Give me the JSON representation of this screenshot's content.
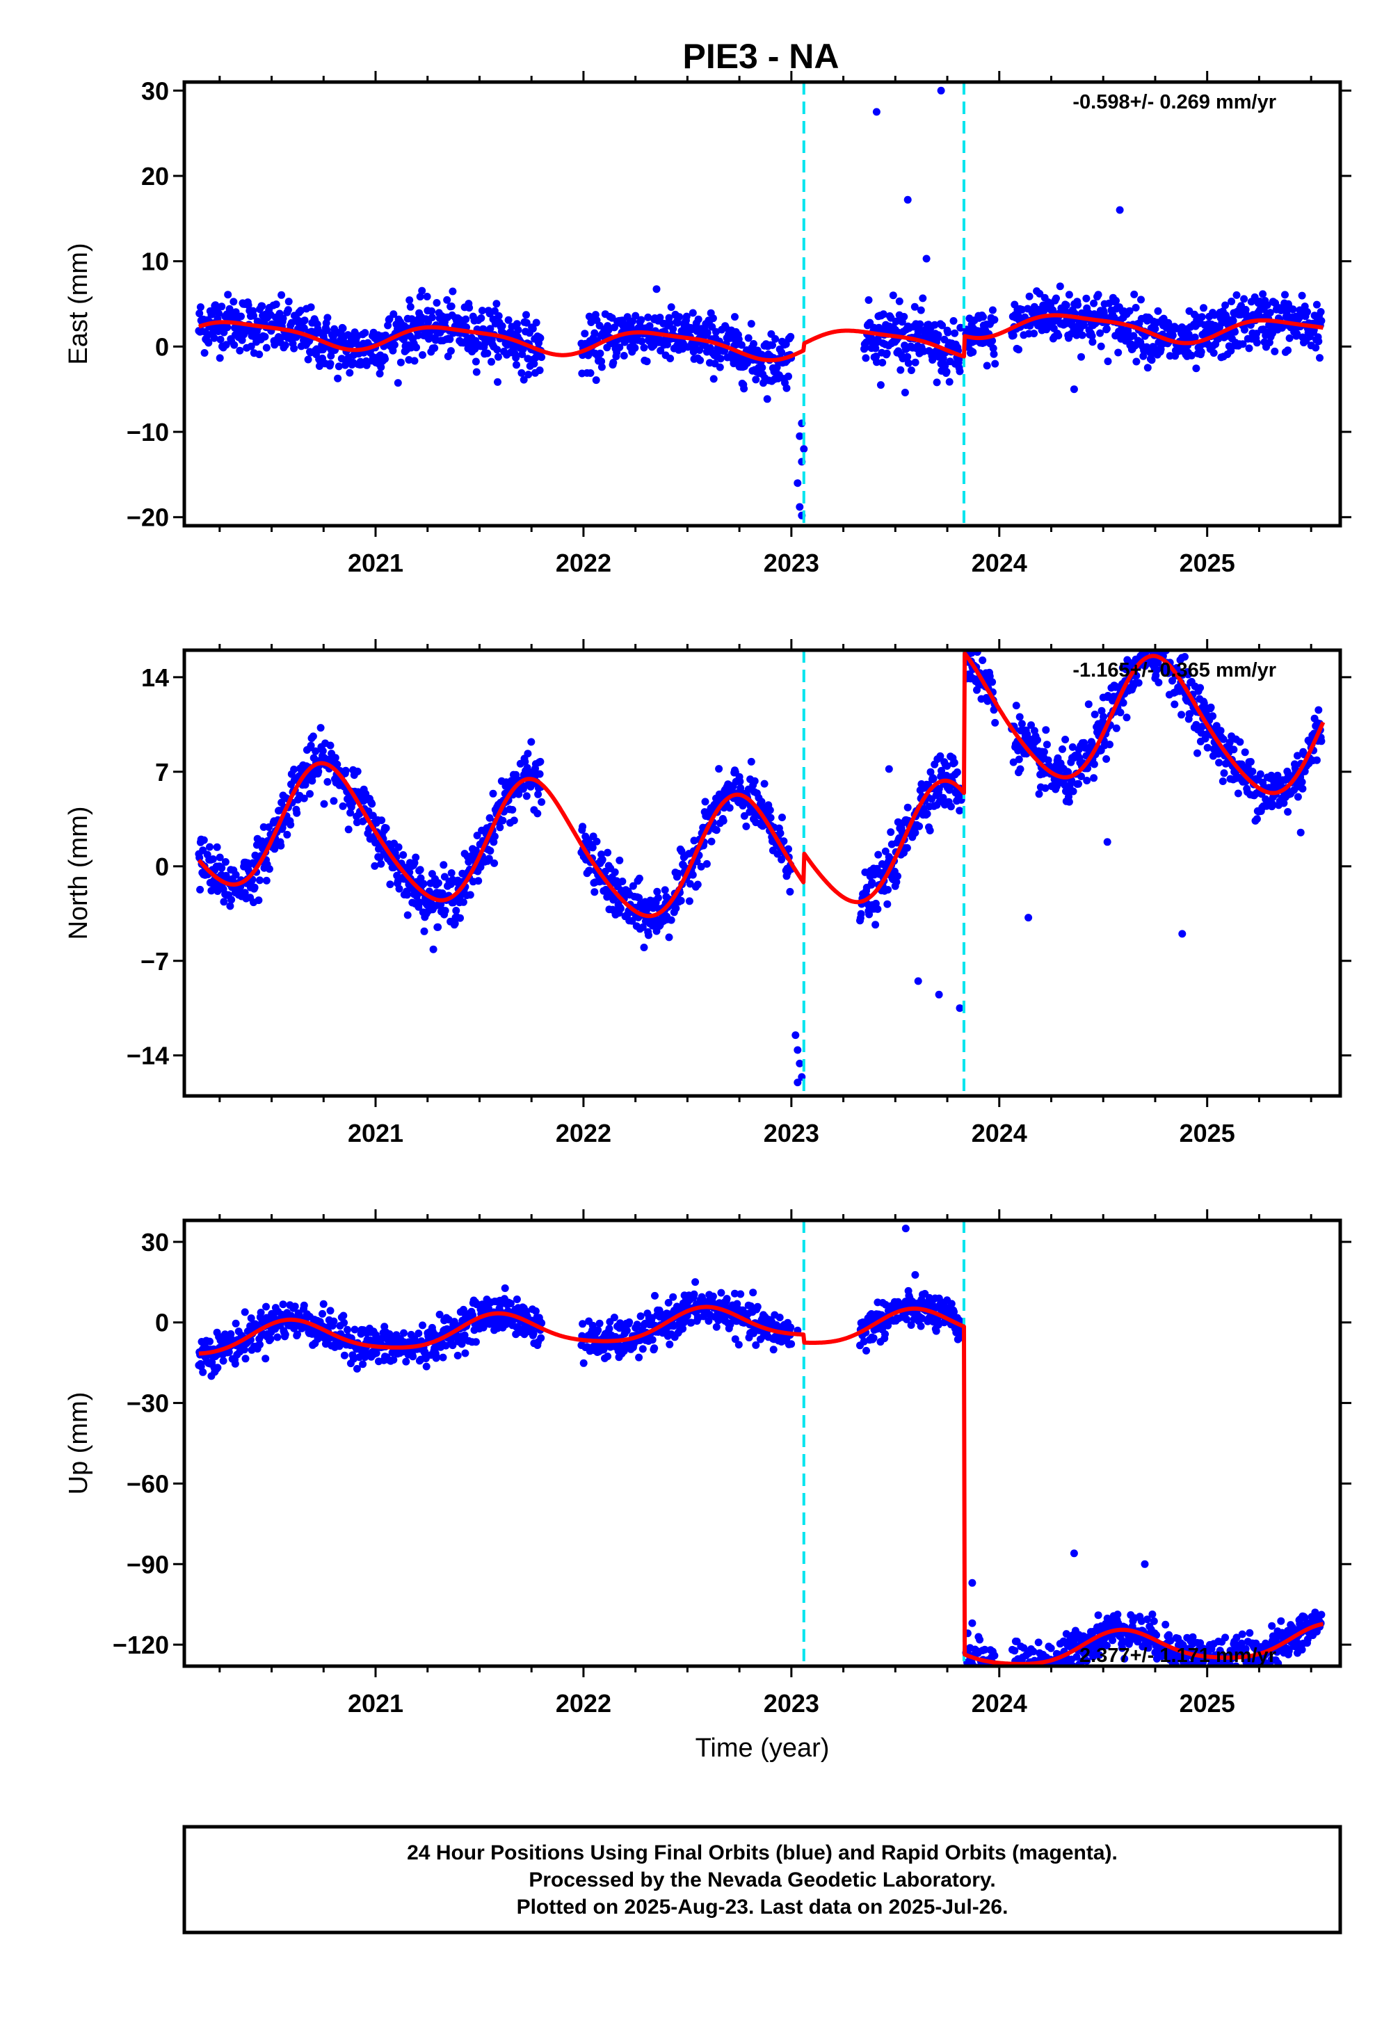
{
  "title": "PIE3 - NA",
  "footer": {
    "line1": "24 Hour Positions Using Final Orbits (blue) and Rapid Orbits (magenta).",
    "line2": "Processed by the Nevada Geodetic Laboratory.",
    "line3": "Plotted on 2025-Aug-23. Last data on 2025-Jul-26."
  },
  "colors": {
    "points": "#0000ff",
    "model": "#ff0000",
    "steps": "#00e5ee",
    "frame": "#000000"
  },
  "chart_data": [
    {
      "type": "scatter",
      "component": "east",
      "ylabel": "East (mm)",
      "xlabel": "",
      "rate_text": "-0.598+/- 0.269 mm/yr",
      "xlim": [
        2020.08,
        2025.64
      ],
      "ylim": [
        -21,
        31
      ],
      "yticks": [
        30,
        20,
        10,
        0,
        -10,
        -20
      ],
      "xticks": [
        2021,
        2022,
        2023,
        2024,
        2025
      ],
      "step_epochs": [
        2023.06,
        2023.83
      ],
      "model": {
        "offset": [
          0,
          0.8,
          3.2
        ],
        "rate": -0.598,
        "ref_year": 2023.0,
        "annual": [
          1.0,
          -0.9
        ],
        "semiannual": [
          0.3,
          -0.2
        ]
      },
      "scatter_sd": 1.6,
      "data_segments": [
        [
          2020.15,
          2020.9
        ],
        [
          2020.9,
          2021.8
        ],
        [
          2021.99,
          2022.55
        ],
        [
          2022.55,
          2023.0
        ],
        [
          2023.35,
          2023.82
        ],
        [
          2023.84,
          2023.98
        ],
        [
          2024.06,
          2025.55
        ]
      ],
      "outliers": [
        [
          2023.41,
          27.5
        ],
        [
          2023.56,
          17.2
        ],
        [
          2023.72,
          30.0
        ],
        [
          2023.65,
          10.3
        ],
        [
          2024.58,
          16.0
        ],
        [
          2024.36,
          -5.0
        ],
        [
          2023.05,
          -9.0
        ],
        [
          2023.04,
          -10.5
        ],
        [
          2023.06,
          -12.0
        ],
        [
          2023.05,
          -13.5
        ],
        [
          2023.03,
          -16.0
        ],
        [
          2023.04,
          -18.8
        ],
        [
          2023.05,
          -19.8
        ],
        [
          2023.49,
          6.0
        ],
        [
          2023.52,
          5.3
        ],
        [
          2024.18,
          6.5
        ],
        [
          2023.43,
          -4.5
        ],
        [
          2023.7,
          -4.2
        ]
      ]
    },
    {
      "type": "scatter",
      "component": "north",
      "ylabel": "North (mm)",
      "xlabel": "",
      "rate_text": "-1.165+/- 0.365 mm/yr",
      "xlim": [
        2020.08,
        2025.64
      ],
      "ylim": [
        -17,
        16
      ],
      "yticks": [
        14,
        7,
        0,
        -7,
        -14
      ],
      "xticks": [
        2021,
        2022,
        2023,
        2024,
        2025
      ],
      "step_epochs": [
        2023.06,
        2023.83
      ],
      "model": {
        "offset": [
          0,
          2.2,
          12.6
        ],
        "rate": -1.165,
        "ref_year": 2023.0,
        "annual": [
          -4.6,
          0.6
        ],
        "semiannual": [
          0.4,
          -0.4
        ]
      },
      "scatter_sd": 1.0,
      "data_segments": [
        [
          2020.15,
          2020.9
        ],
        [
          2020.9,
          2021.8
        ],
        [
          2021.99,
          2022.55
        ],
        [
          2022.55,
          2023.0
        ],
        [
          2023.33,
          2023.82
        ],
        [
          2023.84,
          2023.98
        ],
        [
          2024.06,
          2025.55
        ]
      ],
      "outliers": [
        [
          2023.02,
          -12.5
        ],
        [
          2023.03,
          -13.6
        ],
        [
          2023.04,
          -14.6
        ],
        [
          2023.05,
          -15.6
        ],
        [
          2023.03,
          -16.0
        ],
        [
          2023.47,
          7.2
        ],
        [
          2024.14,
          -3.8
        ],
        [
          2024.88,
          -5.0
        ],
        [
          2024.5,
          12.5
        ],
        [
          2024.43,
          12.0
        ],
        [
          2023.81,
          -10.5
        ],
        [
          2023.61,
          -8.5
        ],
        [
          2023.71,
          -9.5
        ],
        [
          2024.52,
          1.8
        ],
        [
          2025.45,
          2.5
        ]
      ]
    },
    {
      "type": "scatter",
      "component": "up",
      "ylabel": "Up (mm)",
      "xlabel": "Time (year)",
      "rate_text": "2.377+/- 1.171 mm/yr",
      "xlim": [
        2020.08,
        2025.64
      ],
      "ylim": [
        -128,
        38
      ],
      "yticks": [
        30,
        0,
        -30,
        -60,
        -90,
        -120
      ],
      "xticks": [
        2021,
        2022,
        2023,
        2024,
        2025
      ],
      "step_epochs": [
        2023.06,
        2023.83
      ],
      "model": {
        "offset": [
          0,
          -3,
          -125
        ],
        "rate": 2.377,
        "ref_year": 2023.0,
        "annual": [
          -3.2,
          -4.8
        ],
        "semiannual": [
          0.8,
          0.6
        ]
      },
      "scatter_sd": 3.5,
      "data_segments": [
        [
          2020.15,
          2020.9
        ],
        [
          2020.9,
          2021.8
        ],
        [
          2021.99,
          2022.55
        ],
        [
          2022.55,
          2023.0
        ],
        [
          2023.33,
          2023.82
        ],
        [
          2023.84,
          2023.98
        ],
        [
          2024.06,
          2025.55
        ]
      ],
      "outliers": [
        [
          2024.36,
          -86.0
        ],
        [
          2024.7,
          -90.0
        ],
        [
          2023.55,
          35.0
        ],
        [
          2023.87,
          -97.0
        ],
        [
          2023.86,
          -125.0
        ],
        [
          2023.87,
          -112.0
        ],
        [
          2023.03,
          -3.0
        ]
      ]
    }
  ]
}
